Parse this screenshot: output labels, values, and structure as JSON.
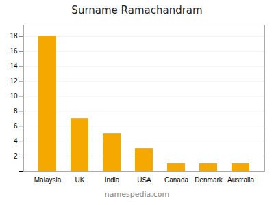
{
  "chart_data": {
    "type": "bar",
    "title": "Surname Ramachandram",
    "categories": [
      "Malaysia",
      "UK",
      "India",
      "USA",
      "Canada",
      "Denmark",
      "Australia"
    ],
    "values": [
      18,
      7,
      5,
      3,
      1,
      1,
      1
    ],
    "color": "#F5A800",
    "ylim": [
      0,
      19.5
    ],
    "yticks": [
      {
        "value": 0,
        "label": ""
      },
      2,
      4,
      6,
      8,
      10,
      12,
      14,
      16,
      18
    ],
    "grid": true,
    "annotations": [
      "namespedia.com"
    ]
  }
}
